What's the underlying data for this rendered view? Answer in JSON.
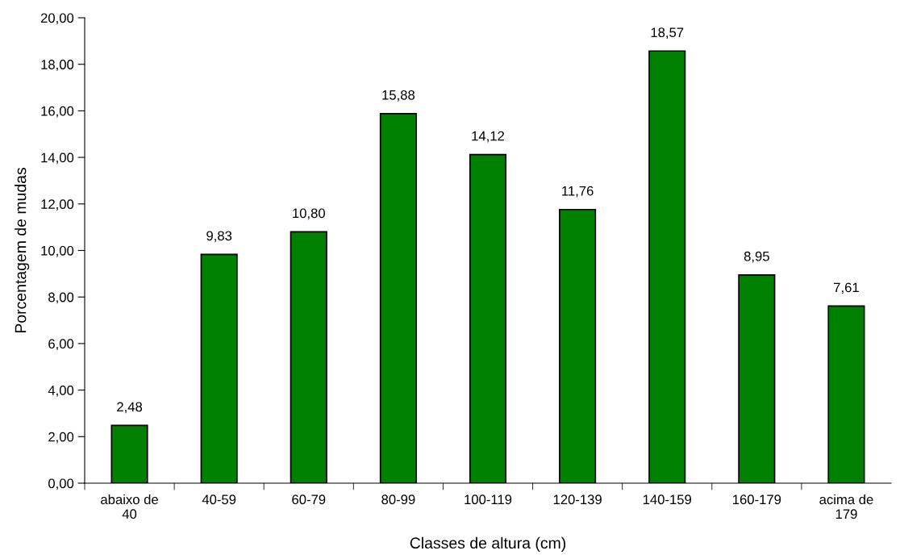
{
  "chart_data": {
    "type": "bar",
    "xlabel": "Classes de altura (cm)",
    "ylabel": "Porcentagem de mudas",
    "categories": [
      "abaixo de\n40",
      "40-59",
      "60-79",
      "80-99",
      "100-119",
      "120-139",
      "140-159",
      "160-179",
      "acima de\n179"
    ],
    "values": [
      2.48,
      9.83,
      10.8,
      15.88,
      14.12,
      11.76,
      18.57,
      8.95,
      7.61
    ],
    "value_labels": [
      "2,48",
      "9,83",
      "10,80",
      "15,88",
      "14,12",
      "11,76",
      "18,57",
      "8,95",
      "7,61"
    ],
    "color": "#008000",
    "ylim": [
      0,
      20
    ],
    "yticks": [
      {
        "value": 0,
        "label": "0,00"
      },
      {
        "value": 2,
        "label": "2,00"
      },
      {
        "value": 4,
        "label": "4,00"
      },
      {
        "value": 6,
        "label": "6,00"
      },
      {
        "value": 8,
        "label": "8,00"
      },
      {
        "value": 10,
        "label": "10,00"
      },
      {
        "value": 12,
        "label": "12,00"
      },
      {
        "value": 14,
        "label": "14,00"
      },
      {
        "value": 16,
        "label": "16,00"
      },
      {
        "value": 18,
        "label": "18,00"
      },
      {
        "value": 20,
        "label": "20,00"
      }
    ],
    "grid": false,
    "legend": false
  }
}
